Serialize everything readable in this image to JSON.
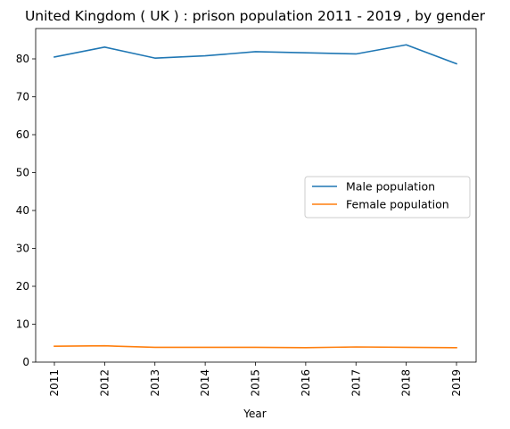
{
  "chart_data": {
    "type": "line",
    "title": "United Kingdom ( UK ) : prison population 2011 - 2019 , by gender",
    "xlabel": "Year",
    "ylabel": "",
    "categories": [
      "2011",
      "2012",
      "2013",
      "2014",
      "2015",
      "2016",
      "2017",
      "2018",
      "2019"
    ],
    "ylim": [
      0,
      88
    ],
    "yticks": [
      0,
      10,
      20,
      30,
      40,
      50,
      60,
      70,
      80
    ],
    "legend": "center-right",
    "grid": false,
    "series": [
      {
        "name": "Male population",
        "color": "#1f77b4",
        "values": [
          80.5,
          83.1,
          80.2,
          80.8,
          81.9,
          81.6,
          81.3,
          83.7,
          78.7
        ]
      },
      {
        "name": "Female population",
        "color": "#ff7f0e",
        "values": [
          4.2,
          4.3,
          3.9,
          3.9,
          3.9,
          3.8,
          4.0,
          3.9,
          3.8
        ]
      }
    ]
  }
}
